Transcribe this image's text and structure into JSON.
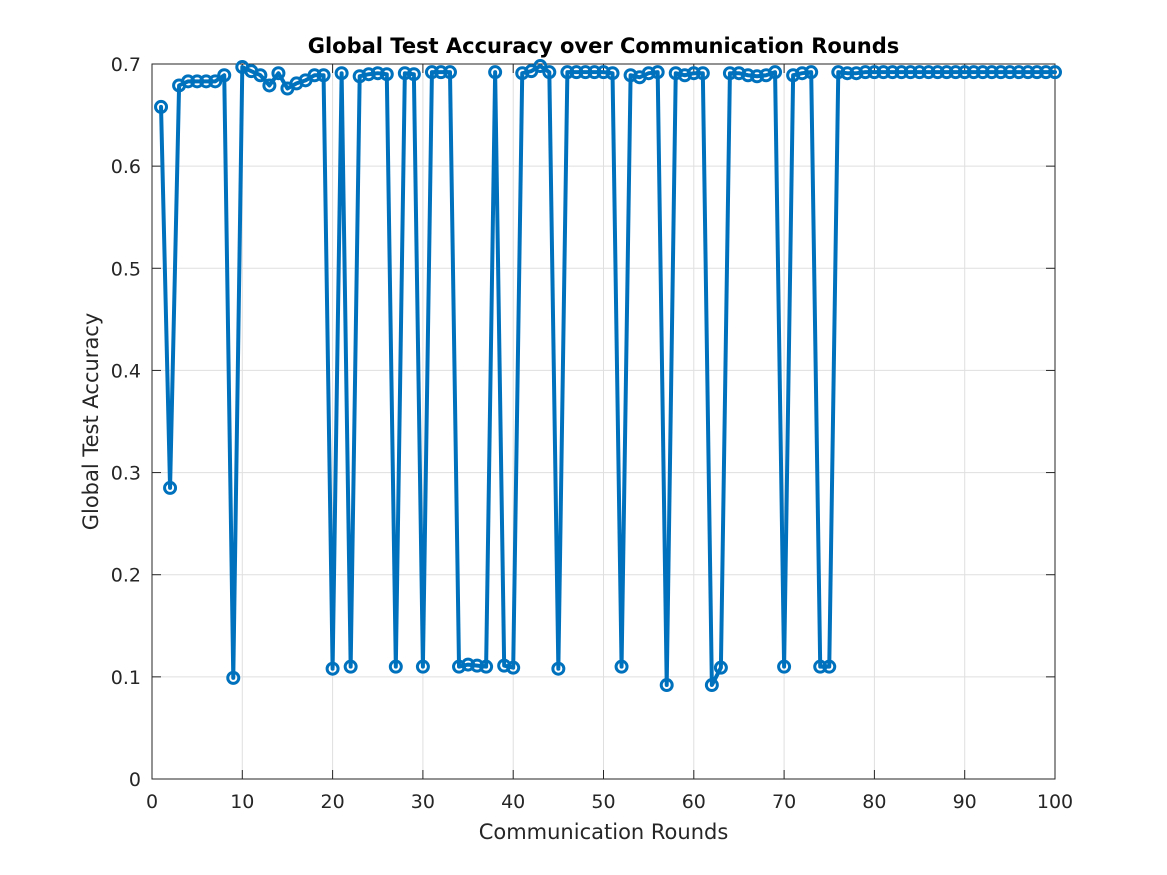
{
  "chart_data": {
    "type": "line",
    "title": "Global Test Accuracy over Communication Rounds",
    "xlabel": "Communication Rounds",
    "ylabel": "Global Test Accuracy",
    "xlim": [
      0,
      100
    ],
    "ylim": [
      0,
      0.7
    ],
    "xticks": [
      "0",
      "10",
      "20",
      "30",
      "40",
      "50",
      "60",
      "70",
      "80",
      "90",
      "100"
    ],
    "yticks": [
      "0",
      "0.1",
      "0.2",
      "0.3",
      "0.4",
      "0.5",
      "0.6",
      "0.7"
    ],
    "grid": true,
    "marker": "circle",
    "series": [
      {
        "color": "#0072BD",
        "x": [
          1,
          2,
          3,
          4,
          5,
          6,
          7,
          8,
          9,
          10,
          11,
          12,
          13,
          14,
          15,
          16,
          17,
          18,
          19,
          20,
          21,
          22,
          23,
          24,
          25,
          26,
          27,
          28,
          29,
          30,
          31,
          32,
          33,
          34,
          35,
          36,
          37,
          38,
          39,
          40,
          41,
          42,
          43,
          44,
          45,
          46,
          47,
          48,
          49,
          50,
          51,
          52,
          53,
          54,
          55,
          56,
          57,
          58,
          59,
          60,
          61,
          62,
          63,
          64,
          65,
          66,
          67,
          68,
          69,
          70,
          71,
          72,
          73,
          74,
          75,
          76,
          77,
          78,
          79,
          80,
          81,
          82,
          83,
          84,
          85,
          86,
          87,
          88,
          89,
          90,
          91,
          92,
          93,
          94,
          95,
          96,
          97,
          98,
          99,
          100
        ],
        "y": [
          0.658,
          0.285,
          0.679,
          0.683,
          0.683,
          0.683,
          0.683,
          0.689,
          0.099,
          0.697,
          0.693,
          0.689,
          0.679,
          0.691,
          0.676,
          0.681,
          0.684,
          0.689,
          0.689,
          0.108,
          0.691,
          0.11,
          0.688,
          0.69,
          0.691,
          0.69,
          0.11,
          0.691,
          0.69,
          0.11,
          0.692,
          0.692,
          0.692,
          0.11,
          0.112,
          0.111,
          0.11,
          0.692,
          0.111,
          0.109,
          0.691,
          0.693,
          0.698,
          0.692,
          0.108,
          0.692,
          0.692,
          0.692,
          0.692,
          0.692,
          0.691,
          0.11,
          0.689,
          0.687,
          0.691,
          0.692,
          0.092,
          0.691,
          0.689,
          0.691,
          0.691,
          0.092,
          0.109,
          0.691,
          0.691,
          0.689,
          0.688,
          0.689,
          0.692,
          0.11,
          0.689,
          0.691,
          0.692,
          0.11,
          0.11,
          0.692,
          0.691,
          0.691,
          0.692,
          0.692,
          0.692,
          0.692,
          0.692,
          0.692,
          0.692,
          0.692,
          0.692,
          0.692,
          0.692,
          0.692,
          0.692,
          0.692,
          0.692,
          0.692,
          0.692,
          0.692,
          0.692,
          0.692,
          0.692,
          0.692
        ]
      }
    ]
  }
}
